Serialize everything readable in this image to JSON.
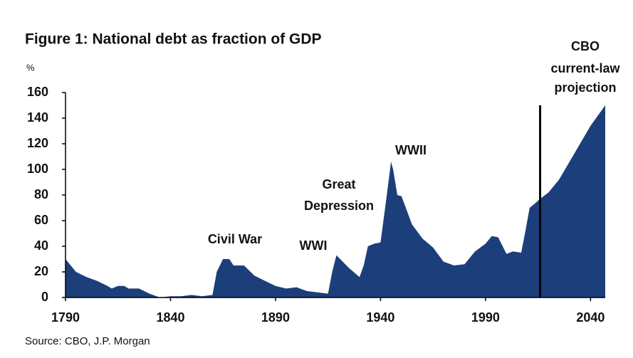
{
  "chart_data": {
    "type": "area",
    "title": "Figure 1: National debt as fraction of GDP",
    "y_label": "%",
    "source": "Source: CBO, J.P. Morgan",
    "color": "#1c3f7c",
    "x": [
      1790,
      1795,
      1800,
      1805,
      1810,
      1812,
      1815,
      1818,
      1820,
      1825,
      1830,
      1835,
      1840,
      1845,
      1850,
      1855,
      1860,
      1862,
      1865,
      1868,
      1870,
      1875,
      1880,
      1885,
      1890,
      1895,
      1900,
      1905,
      1910,
      1915,
      1917,
      1919,
      1922,
      1925,
      1930,
      1932,
      1934,
      1937,
      1940,
      1943,
      1945,
      1946,
      1948,
      1950,
      1955,
      1960,
      1965,
      1970,
      1975,
      1980,
      1985,
      1990,
      1993,
      1996,
      2000,
      2003,
      2007,
      2009,
      2011,
      2014,
      2016,
      2020,
      2025,
      2030,
      2035,
      2040,
      2047
    ],
    "values": [
      30,
      20,
      16,
      13,
      9,
      7,
      9,
      9,
      7,
      7,
      3,
      0,
      1,
      1,
      2,
      1,
      2,
      20,
      30,
      30,
      25,
      25,
      17,
      13,
      9,
      7,
      8,
      5,
      4,
      3,
      20,
      33,
      28,
      23,
      16,
      25,
      40,
      42,
      43,
      80,
      106,
      100,
      80,
      79,
      57,
      46,
      39,
      28,
      25,
      26,
      36,
      42,
      48,
      47,
      34,
      36,
      35,
      52,
      70,
      74,
      77,
      82,
      92,
      106,
      120,
      134,
      150
    ],
    "xlim": [
      1790,
      2047
    ],
    "ylim": [
      0,
      160
    ],
    "xticks": [
      1790,
      1840,
      1890,
      1940,
      1990,
      2040
    ],
    "yticks": [
      0,
      20,
      40,
      60,
      80,
      100,
      120,
      140,
      160
    ],
    "projection_start": 2016,
    "annotations": [
      {
        "lines": [
          "Civil War"
        ]
      },
      {
        "lines": [
          "WWI"
        ]
      },
      {
        "lines": [
          "Great",
          "Depression"
        ]
      },
      {
        "lines": [
          "WWII"
        ]
      },
      {
        "lines": [
          "CBO",
          "current-law",
          "projection"
        ]
      }
    ]
  }
}
